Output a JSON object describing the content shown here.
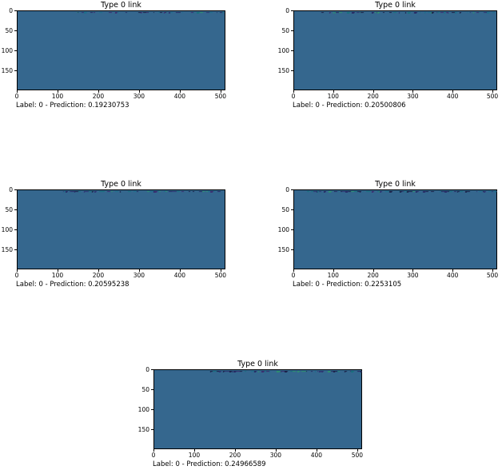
{
  "figure": {
    "background_color": "#ffffff",
    "image_fill_color": "#35678e",
    "spine_color": "#000000",
    "noise_palette": [
      "#1b2147",
      "#262a63",
      "#2d3370",
      "#1d6e8a",
      "#17707c",
      "#2e8f6e",
      "#3a2d6e"
    ]
  },
  "chart_data": [
    {
      "type": "heatmap",
      "title": "Type 0 link",
      "annotation": "Label: 0 - Prediction: 0.19230753",
      "label": 0,
      "prediction": 0.19230753,
      "x_ticks": [
        0,
        100,
        200,
        300,
        400,
        500
      ],
      "y_ticks": [
        0,
        50,
        100,
        150
      ],
      "xlim": [
        0,
        512
      ],
      "ylim": [
        200,
        0
      ],
      "base_color": "#35678e",
      "description": "mostly uniform blue image; sparse dark noise pixels along top row",
      "noise": {
        "seed": 3,
        "start_frac": 0.28,
        "density": 0.55
      }
    },
    {
      "type": "heatmap",
      "title": "Type 0 link",
      "annotation": "Label: 0 - Prediction: 0.20500806",
      "label": 0,
      "prediction": 0.20500806,
      "x_ticks": [
        0,
        100,
        200,
        300,
        400,
        500
      ],
      "y_ticks": [
        0,
        50,
        100,
        150
      ],
      "xlim": [
        0,
        512
      ],
      "ylim": [
        200,
        0
      ],
      "base_color": "#35678e",
      "description": "mostly uniform blue image; sparse dark noise pixels along top row",
      "noise": {
        "seed": 5,
        "start_frac": 0.12,
        "density": 0.5
      }
    },
    {
      "type": "heatmap",
      "title": "Type 0 link",
      "annotation": "Label: 0 - Prediction: 0.20595238",
      "label": 0,
      "prediction": 0.20595238,
      "x_ticks": [
        0,
        100,
        200,
        300,
        400,
        500
      ],
      "y_ticks": [
        0,
        50,
        100,
        150
      ],
      "xlim": [
        0,
        512
      ],
      "ylim": [
        200,
        0
      ],
      "base_color": "#35678e",
      "description": "mostly uniform blue image; sparse dark noise pixels along top row",
      "noise": {
        "seed": 7,
        "start_frac": 0.22,
        "density": 0.6
      }
    },
    {
      "type": "heatmap",
      "title": "Type 0 link",
      "annotation": "Label: 0 - Prediction: 0.2253105",
      "label": 0,
      "prediction": 0.2253105,
      "x_ticks": [
        0,
        100,
        200,
        300,
        400,
        500
      ],
      "y_ticks": [
        0,
        50,
        100,
        150
      ],
      "xlim": [
        0,
        512
      ],
      "ylim": [
        200,
        0
      ],
      "base_color": "#35678e",
      "description": "mostly uniform blue image; dense dark noise pixels along top row",
      "noise": {
        "seed": 11,
        "start_frac": 0.06,
        "density": 0.7
      }
    },
    {
      "type": "heatmap",
      "title": "Type 0 link",
      "annotation": "Label: 0 - Prediction: 0.24966589",
      "label": 0,
      "prediction": 0.24966589,
      "x_ticks": [
        0,
        100,
        200,
        300,
        400,
        500
      ],
      "y_ticks": [
        0,
        50,
        100,
        150
      ],
      "xlim": [
        0,
        512
      ],
      "ylim": [
        200,
        0
      ],
      "base_color": "#35678e",
      "description": "mostly uniform blue image; teal/green noise pixels along top row right half",
      "noise": {
        "seed": 13,
        "start_frac": 0.27,
        "density": 0.62
      }
    }
  ]
}
